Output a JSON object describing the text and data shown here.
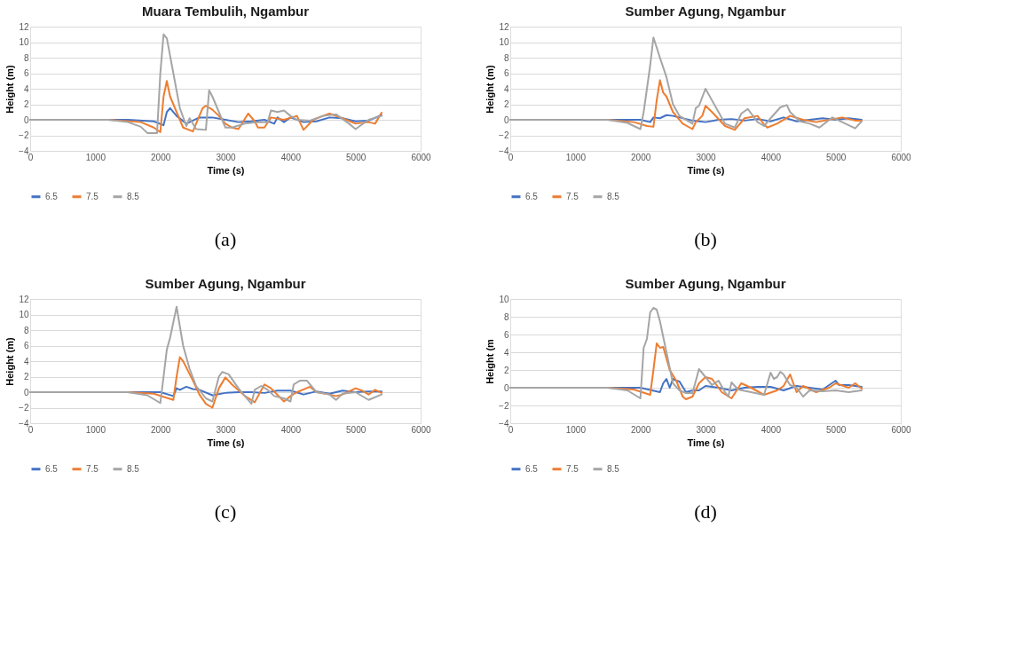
{
  "chart_data": [
    {
      "type": "line",
      "title": "Muara Tembulih, Ngambur",
      "xlabel": "Time (s)",
      "ylabel": "Height (m)",
      "annotations": [
        "(a)"
      ],
      "xlim": [
        0,
        6000
      ],
      "xticks": [
        0,
        1000,
        2000,
        3000,
        4000,
        5000,
        6000
      ],
      "ylim": [
        -4,
        12
      ],
      "yticks": [
        -4,
        -2,
        0,
        2,
        4,
        6,
        8,
        10,
        12
      ],
      "grid": "y",
      "legend": "bottom",
      "line_style": "solid",
      "series": [
        {
          "name": "6.5",
          "color": "#4472c4",
          "x": [
            0,
            1500,
            1900,
            2050,
            2100,
            2150,
            2250,
            2400,
            2600,
            2800,
            3000,
            3200,
            3400,
            3600,
            3750,
            3800,
            3900,
            4000,
            4200,
            4400,
            4600,
            4800,
            5000,
            5200,
            5400
          ],
          "values": [
            0,
            0,
            -0.2,
            -0.7,
            1,
            1.5,
            0.5,
            -0.5,
            0.3,
            0.3,
            0,
            -0.3,
            -0.2,
            0,
            -0.5,
            0.3,
            -0.3,
            0.3,
            -0.3,
            -0.2,
            0.3,
            0.2,
            -0.2,
            -0.1,
            0.6
          ]
        },
        {
          "name": "7.5",
          "color": "#ed7d31",
          "x": [
            0,
            1200,
            1700,
            1900,
            2000,
            2050,
            2100,
            2150,
            2250,
            2350,
            2500,
            2650,
            2700,
            2800,
            2900,
            3000,
            3100,
            3200,
            3350,
            3450,
            3500,
            3600,
            3700,
            3900,
            4100,
            4200,
            4350,
            4500,
            4600,
            4800,
            5000,
            5200,
            5300,
            5400
          ],
          "values": [
            0,
            0,
            -0.3,
            -1,
            -1.6,
            3,
            5,
            3,
            1,
            -1,
            -1.5,
            1.5,
            1.8,
            1.3,
            0.5,
            -0.5,
            -1,
            -1.2,
            0.8,
            -0.2,
            -1,
            -1,
            0.3,
            0,
            0.5,
            -1.3,
            0,
            0.5,
            0.8,
            0.2,
            -0.5,
            -0.3,
            -0.5,
            0.9
          ]
        },
        {
          "name": "8.5",
          "color": "#a5a5a5",
          "x": [
            0,
            1200,
            1500,
            1700,
            1800,
            1950,
            2000,
            2050,
            2100,
            2200,
            2300,
            2400,
            2450,
            2550,
            2700,
            2750,
            2800,
            2900,
            3000,
            3100,
            3300,
            3500,
            3650,
            3700,
            3800,
            3900,
            4000,
            4100,
            4300,
            4500,
            4700,
            4900,
            5000,
            5200,
            5400
          ],
          "values": [
            0,
            0,
            -0.3,
            -0.9,
            -1.7,
            -1.7,
            6,
            11,
            10.5,
            6,
            1.5,
            -0.8,
            0.2,
            -1.2,
            -1.3,
            3.8,
            3,
            1,
            -1,
            -1,
            -0.5,
            -0.3,
            -0.3,
            1.2,
            1,
            1.2,
            0.5,
            0,
            -0.1,
            0.5,
            0.7,
            -0.5,
            -1.2,
            0,
            0.5
          ]
        }
      ]
    },
    {
      "type": "line",
      "title": "Sumber Agung, Ngambur",
      "xlabel": "Time (s)",
      "ylabel": "Height (m)",
      "annotations": [
        "(b)"
      ],
      "xlim": [
        0,
        6000
      ],
      "xticks": [
        0,
        1000,
        2000,
        3000,
        4000,
        5000,
        6000
      ],
      "ylim": [
        -4,
        12
      ],
      "yticks": [
        -4,
        -2,
        0,
        2,
        4,
        6,
        8,
        10,
        12
      ],
      "grid": "y",
      "legend": "bottom",
      "line_style": "solid",
      "series": [
        {
          "name": "6.5",
          "color": "#4472c4",
          "x": [
            0,
            2000,
            2150,
            2200,
            2300,
            2400,
            2500,
            2600,
            2800,
            2900,
            3000,
            3200,
            3400,
            3600,
            3800,
            4000,
            4200,
            4400,
            4600,
            4800,
            5000,
            5200,
            5400
          ],
          "values": [
            0,
            0,
            -0.3,
            0.3,
            0.2,
            0.6,
            0.5,
            0.3,
            -0.1,
            -0.2,
            -0.3,
            0,
            0.1,
            -0.1,
            0.1,
            -0.2,
            0.3,
            -0.2,
            0,
            0.2,
            0,
            0.2,
            0
          ]
        },
        {
          "name": "7.5",
          "color": "#ed7d31",
          "x": [
            0,
            1500,
            1900,
            2100,
            2200,
            2250,
            2300,
            2350,
            2400,
            2500,
            2650,
            2800,
            2850,
            2950,
            3000,
            3100,
            3300,
            3450,
            3600,
            3800,
            3900,
            3950,
            4100,
            4300,
            4500,
            4700,
            4900,
            5100,
            5300,
            5400
          ],
          "values": [
            0,
            0,
            -0.3,
            -0.8,
            -0.9,
            2.5,
            5.1,
            3.5,
            3,
            1,
            -0.5,
            -1.2,
            -0.3,
            0.5,
            1.8,
            1,
            -0.8,
            -1.3,
            0.2,
            0.5,
            -0.6,
            -1,
            -0.5,
            0.5,
            0,
            -0.3,
            0,
            0.3,
            -0.1,
            -0.1
          ]
        },
        {
          "name": "8.5",
          "color": "#a5a5a5",
          "x": [
            0,
            1500,
            1800,
            2000,
            2050,
            2100,
            2150,
            2200,
            2300,
            2400,
            2500,
            2600,
            2800,
            2850,
            2900,
            3000,
            3100,
            3200,
            3300,
            3450,
            3550,
            3650,
            3800,
            3900,
            4000,
            4150,
            4250,
            4300,
            4450,
            4600,
            4750,
            4950,
            5100,
            5300,
            5400
          ],
          "values": [
            0,
            0,
            -0.4,
            -1.2,
            1,
            4,
            7,
            10.6,
            8,
            5.5,
            2,
            0.5,
            -0.5,
            1.5,
            1.8,
            4,
            2.5,
            1,
            -0.5,
            -1,
            0.8,
            1.4,
            -0.3,
            -0.8,
            0.2,
            1.6,
            1.9,
            1,
            -0.2,
            -0.5,
            -1,
            0.3,
            -0.3,
            -1.1,
            -0.2
          ]
        }
      ]
    },
    {
      "type": "line",
      "title": "Sumber Agung, Ngambur",
      "xlabel": "Time (s)",
      "ylabel": "Height (m)",
      "annotations": [
        "(c)"
      ],
      "xlim": [
        0,
        6000
      ],
      "xticks": [
        0,
        1000,
        2000,
        3000,
        4000,
        5000,
        6000
      ],
      "ylim": [
        -4,
        12
      ],
      "yticks": [
        -4,
        -2,
        0,
        2,
        4,
        6,
        8,
        10,
        12
      ],
      "grid": "y",
      "legend": "bottom",
      "line_style": "solid",
      "series": [
        {
          "name": "6.5",
          "color": "#4472c4",
          "x": [
            0,
            2000,
            2200,
            2250,
            2300,
            2400,
            2500,
            2600,
            2800,
            3000,
            3200,
            3400,
            3600,
            3800,
            4000,
            4200,
            4400,
            4600,
            4800,
            5000,
            5200,
            5400
          ],
          "values": [
            0,
            0,
            -0.5,
            0.5,
            0.3,
            0.7,
            0.4,
            0.3,
            -0.4,
            -0.1,
            0,
            0,
            -0.1,
            0.2,
            0.2,
            -0.3,
            0.1,
            -0.2,
            0.2,
            0,
            0.1,
            0.1
          ]
        },
        {
          "name": "7.5",
          "color": "#ed7d31",
          "x": [
            0,
            1500,
            1900,
            2200,
            2250,
            2300,
            2350,
            2500,
            2600,
            2700,
            2800,
            2900,
            3000,
            3100,
            3300,
            3450,
            3600,
            3700,
            3900,
            4000,
            4100,
            4300,
            4400,
            4600,
            4700,
            4800,
            5000,
            5100,
            5200,
            5300,
            5400
          ],
          "values": [
            0,
            0,
            -0.2,
            -1,
            2,
            4.5,
            4,
            1.5,
            -0.3,
            -1.5,
            -2,
            0.5,
            1.9,
            1,
            -0.5,
            -1.3,
            1,
            0.5,
            -1.2,
            -0.5,
            0,
            0.7,
            0,
            -0.3,
            -0.5,
            -0.3,
            0.5,
            0.2,
            -0.3,
            0.3,
            -0.1
          ]
        },
        {
          "name": "8.5",
          "color": "#a5a5a5",
          "x": [
            0,
            1500,
            1800,
            2000,
            2050,
            2100,
            2150,
            2250,
            2350,
            2450,
            2550,
            2700,
            2800,
            2900,
            2950,
            3050,
            3200,
            3400,
            3450,
            3550,
            3650,
            3750,
            3900,
            4000,
            4050,
            4150,
            4250,
            4400,
            4600,
            4700,
            4800,
            5000,
            5200,
            5400
          ],
          "values": [
            0,
            0,
            -0.4,
            -1.4,
            2,
            5.5,
            7,
            11,
            6,
            3,
            0.8,
            -0.8,
            -1.2,
            2,
            2.6,
            2.3,
            0.5,
            -1.5,
            0.3,
            0.8,
            0.3,
            -0.5,
            -0.8,
            -1.2,
            1,
            1.5,
            1.5,
            0,
            -0.3,
            -1,
            -0.2,
            0,
            -1,
            -0.3
          ]
        }
      ]
    },
    {
      "type": "line",
      "title": "Sumber Agung, Ngambur",
      "xlabel": "Time (s)",
      "ylabel": "Height (m",
      "annotations": [
        "(d)"
      ],
      "xlim": [
        0,
        6000
      ],
      "xticks": [
        0,
        1000,
        2000,
        3000,
        4000,
        5000,
        6000
      ],
      "ylim": [
        -4,
        10
      ],
      "yticks": [
        -4,
        -2,
        0,
        2,
        4,
        6,
        8,
        10
      ],
      "grid": "y",
      "legend": "bottom",
      "line_style": "solid",
      "series": [
        {
          "name": "6.5",
          "color": "#4472c4",
          "x": [
            0,
            2000,
            2300,
            2350,
            2400,
            2450,
            2500,
            2550,
            2600,
            2700,
            2800,
            2900,
            3000,
            3200,
            3400,
            3600,
            3800,
            4000,
            4200,
            4400,
            4600,
            4800,
            5000,
            5050,
            5200,
            5400
          ],
          "values": [
            0,
            0,
            -0.5,
            0.5,
            1,
            0,
            1,
            0.8,
            0.7,
            -0.5,
            -0.3,
            -0.3,
            0.2,
            0,
            -0.3,
            0,
            0.1,
            0.1,
            -0.3,
            0.2,
            0,
            -0.2,
            0.8,
            0.3,
            0.3,
            0.1
          ]
        },
        {
          "name": "7.5",
          "color": "#ed7d31",
          "x": [
            0,
            1500,
            1900,
            2150,
            2200,
            2250,
            2300,
            2350,
            2450,
            2550,
            2650,
            2700,
            2800,
            2900,
            3000,
            3100,
            3250,
            3400,
            3550,
            3700,
            3900,
            4100,
            4200,
            4300,
            4400,
            4500,
            4700,
            4900,
            5000,
            5200,
            5300,
            5400
          ],
          "values": [
            0,
            0,
            -0.2,
            -0.8,
            2,
            5,
            4.5,
            4.6,
            2,
            0.8,
            -1,
            -1.3,
            -1,
            0.5,
            1.2,
            1,
            -0.5,
            -1.2,
            0.5,
            0,
            -0.8,
            -0.3,
            0.2,
            1.5,
            -0.5,
            0.2,
            -0.5,
            0,
            0.5,
            0,
            0.5,
            -0.1
          ]
        },
        {
          "name": "8.5",
          "color": "#a5a5a5",
          "x": [
            0,
            1500,
            1800,
            2000,
            2050,
            2100,
            2150,
            2200,
            2250,
            2300,
            2400,
            2500,
            2600,
            2700,
            2800,
            2900,
            3000,
            3100,
            3200,
            3300,
            3350,
            3400,
            3500,
            3700,
            3900,
            4000,
            4050,
            4100,
            4150,
            4200,
            4300,
            4400,
            4500,
            4600,
            4800,
            5000,
            5200,
            5400
          ],
          "values": [
            0,
            0,
            -0.3,
            -1.2,
            4.5,
            5.5,
            8.5,
            9,
            8.8,
            7.5,
            4,
            0.5,
            -0.3,
            -0.6,
            -0.6,
            2.1,
            1.2,
            0.3,
            0.8,
            -0.5,
            -1,
            0.6,
            -0.2,
            -0.5,
            -0.8,
            1.7,
            1,
            1.2,
            1.8,
            1.5,
            0.3,
            0,
            -1,
            -0.3,
            -0.4,
            -0.3,
            -0.5,
            -0.3
          ]
        }
      ]
    }
  ]
}
